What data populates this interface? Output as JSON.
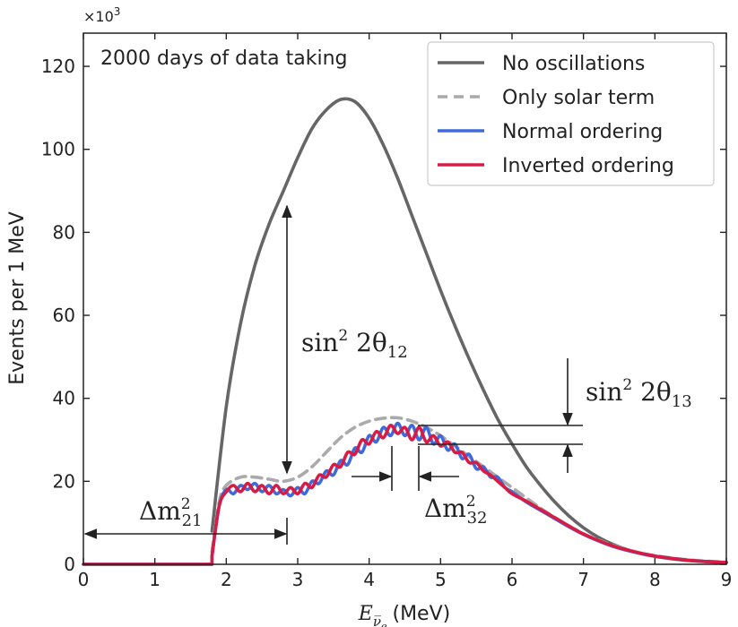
{
  "chart_data": {
    "type": "line",
    "xlabel_main": "E",
    "xlabel_sub": "ν̅",
    "xlabel_subsub": "e",
    "xlabel_unit": "(MeV)",
    "ylabel": "Events per 1 MeV",
    "y_multiplier": "×10",
    "y_multiplier_exp": "3",
    "xlim": [
      0,
      9
    ],
    "ylim": [
      0,
      128
    ],
    "xticks": [
      "0",
      "1",
      "2",
      "3",
      "4",
      "5",
      "6",
      "7",
      "8",
      "9"
    ],
    "yticks": [
      "0",
      "20",
      "40",
      "60",
      "80",
      "100",
      "120"
    ],
    "annotation": "2000 days of data taking",
    "legend_position": "top-right",
    "series": [
      {
        "name": "No oscillations",
        "color": "#666666",
        "style": "solid",
        "x": [
          1.8,
          2.0,
          2.2,
          2.4,
          2.6,
          2.8,
          3.0,
          3.2,
          3.4,
          3.6,
          3.8,
          4.0,
          4.2,
          4.4,
          4.6,
          4.8,
          5.0,
          5.2,
          5.4,
          5.6,
          5.8,
          6.0,
          6.2,
          6.4,
          6.6,
          6.8,
          7.0,
          7.2,
          7.4,
          7.6,
          7.8,
          8.0,
          8.2,
          8.4,
          8.6,
          8.8,
          9.0
        ],
        "y": [
          8,
          38,
          58,
          72,
          82,
          90,
          98,
          105,
          109.5,
          112,
          111.5,
          107.5,
          101,
          93,
          84,
          75,
          66,
          57.5,
          49.5,
          42,
          35,
          29,
          23.5,
          19,
          15,
          11.6,
          8.8,
          6.6,
          4.9,
          3.6,
          2.6,
          1.9,
          1.4,
          1.0,
          0.75,
          0.55,
          0.4
        ]
      },
      {
        "name": "Only solar term",
        "color": "#aaaaaa",
        "style": "dashed",
        "x": [
          1.8,
          1.9,
          2.0,
          2.2,
          2.4,
          2.6,
          2.8,
          3.0,
          3.2,
          3.4,
          3.6,
          3.8,
          4.0,
          4.2,
          4.4,
          4.6,
          4.8,
          5.0,
          5.2,
          5.4,
          5.6,
          5.8,
          6.0,
          6.2,
          6.4,
          6.6,
          6.8,
          7.0,
          7.2,
          7.4,
          7.6,
          7.8,
          8.0,
          8.2,
          8.4,
          8.6,
          8.8,
          9.0
        ],
        "y": [
          3,
          15,
          19,
          21,
          21,
          20.5,
          20,
          21,
          23.5,
          27,
          30.5,
          33,
          34.5,
          35.2,
          35.3,
          34.5,
          33,
          31,
          28.5,
          26,
          23.5,
          21,
          18.5,
          16,
          13.5,
          11.3,
          9.2,
          7.4,
          5.9,
          4.6,
          3.6,
          2.7,
          2.1,
          1.6,
          1.2,
          0.9,
          0.7,
          0.5
        ]
      },
      {
        "name": "Normal ordering",
        "color": "#3f6ad8",
        "style": "solid",
        "x": [
          1.8,
          1.9,
          2.0,
          2.1,
          2.2,
          2.3,
          2.4,
          2.5,
          2.6,
          2.7,
          2.8,
          2.9,
          3.0,
          3.1,
          3.2,
          3.3,
          3.4,
          3.5,
          3.6,
          3.7,
          3.8,
          3.9,
          4.0,
          4.1,
          4.2,
          4.3,
          4.4,
          4.5,
          4.6,
          4.7,
          4.8,
          4.9,
          5.0,
          5.1,
          5.2,
          5.3,
          5.4,
          5.5,
          5.6,
          5.7,
          5.8,
          5.9,
          6.0,
          6.2,
          6.4,
          6.6,
          6.8,
          7.0,
          7.2,
          7.4,
          7.6,
          7.8,
          8.0,
          8.2,
          8.4,
          8.6,
          8.8,
          9.0
        ],
        "y": [
          2,
          14,
          18,
          17,
          19,
          18,
          19.5,
          17.5,
          19,
          17,
          18,
          16.5,
          18.5,
          17,
          20,
          19.5,
          22.5,
          21.5,
          25,
          24,
          28,
          27,
          31,
          29.5,
          33,
          31,
          34,
          31,
          33.5,
          30,
          33,
          29,
          31,
          27.5,
          29,
          25.5,
          26.5,
          23,
          23.5,
          21,
          21,
          18.5,
          17.5,
          15,
          13,
          11,
          9,
          7.2,
          5.7,
          4.4,
          3.4,
          2.6,
          2.0,
          1.5,
          1.1,
          0.8,
          0.6,
          0.45
        ]
      },
      {
        "name": "Inverted ordering",
        "color": "#d81b45",
        "style": "solid",
        "x": [
          1.8,
          1.9,
          2.0,
          2.1,
          2.2,
          2.3,
          2.4,
          2.5,
          2.6,
          2.7,
          2.8,
          2.9,
          3.0,
          3.1,
          3.2,
          3.3,
          3.4,
          3.5,
          3.6,
          3.7,
          3.8,
          3.9,
          4.0,
          4.1,
          4.2,
          4.3,
          4.4,
          4.5,
          4.6,
          4.7,
          4.8,
          4.9,
          5.0,
          5.1,
          5.2,
          5.3,
          5.4,
          5.5,
          5.6,
          5.7,
          5.8,
          5.9,
          6.0,
          6.2,
          6.4,
          6.6,
          6.8,
          7.0,
          7.2,
          7.4,
          7.6,
          7.8,
          8.0,
          8.2,
          8.4,
          8.6,
          8.8,
          9.0
        ],
        "y": [
          2,
          14,
          17.5,
          19,
          17.5,
          19.5,
          17.5,
          19,
          17,
          19,
          17,
          18.5,
          17,
          19.5,
          18.5,
          21.5,
          21,
          24,
          23.5,
          27,
          26.5,
          30,
          29,
          32,
          30.5,
          33.5,
          31.5,
          33,
          30,
          33,
          29.5,
          31,
          28.5,
          29.5,
          27,
          27,
          24.5,
          24.5,
          22.5,
          21.5,
          20,
          18.5,
          17,
          15.2,
          13.2,
          11.2,
          9.2,
          7.3,
          5.8,
          4.5,
          3.5,
          2.7,
          2.0,
          1.5,
          1.1,
          0.8,
          0.6,
          0.45
        ]
      }
    ]
  },
  "annotations": {
    "sin12_main": "sin",
    "sin12_exp": "2",
    "sin12_rest": " 2θ",
    "sin12_sub": "12",
    "sin13_main": "sin",
    "sin13_exp": "2",
    "sin13_rest": " 2θ",
    "sin13_sub": "13",
    "dm21_main": "Δm",
    "dm21_sup": "2",
    "dm21_sub": "21",
    "dm32_main": "Δm",
    "dm32_sup": "2",
    "dm32_sub": "32"
  },
  "colors": {
    "axes": "#222222",
    "annotation_arrows": "#222222"
  }
}
